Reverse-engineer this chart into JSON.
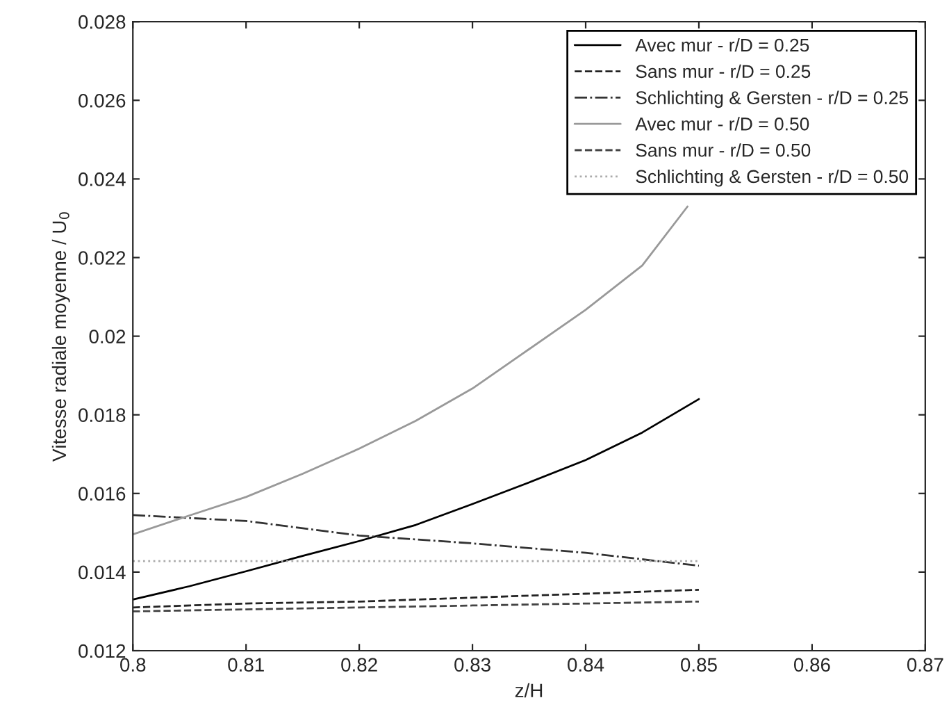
{
  "chart_data": {
    "type": "line",
    "xlabel": "z/H",
    "ylabel": "Vitesse radiale moyenne / U$_{0}$",
    "xlim": [
      0.8,
      0.87
    ],
    "xticks": [
      0.8,
      0.81,
      0.82,
      0.83,
      0.84,
      0.85,
      0.86,
      0.87
    ],
    "ylim": [
      0.012,
      0.028
    ],
    "yticks": [
      0.012,
      0.014,
      0.016,
      0.018,
      0.02,
      0.022,
      0.024,
      0.026,
      0.028
    ],
    "grid": false,
    "legend": "top right",
    "marker": "none",
    "series": [
      {
        "name": "Avec mur - r/D = 0.25",
        "color": "#000000",
        "line_style": "solid",
        "x": [
          0.8,
          0.805,
          0.81,
          0.815,
          0.82,
          0.825,
          0.83,
          0.835,
          0.84,
          0.845,
          0.85
        ],
        "values": [
          0.0133,
          0.01364,
          0.01402,
          0.01441,
          0.01479,
          0.0152,
          0.01573,
          0.01628,
          0.01685,
          0.01755,
          0.0184
        ]
      },
      {
        "name": "Sans mur - r/D = 0.25",
        "color": "#222222",
        "line_style": "dashed",
        "x": [
          0.8,
          0.81,
          0.82,
          0.83,
          0.84,
          0.85
        ],
        "values": [
          0.0131,
          0.0132,
          0.01325,
          0.01335,
          0.01345,
          0.01355
        ]
      },
      {
        "name": "Schlichting & Gersten - r/D = 0.25",
        "color": "#333333",
        "line_style": "dashdot",
        "x": [
          0.8,
          0.81,
          0.82,
          0.83,
          0.84,
          0.85
        ],
        "values": [
          0.01545,
          0.0153,
          0.01493,
          0.01473,
          0.01449,
          0.01416
        ]
      },
      {
        "name": "Avec mur - r/D = 0.50",
        "color": "#999999",
        "line_style": "solid",
        "x": [
          0.8,
          0.805,
          0.81,
          0.815,
          0.82,
          0.825,
          0.83,
          0.835,
          0.84,
          0.845,
          0.849
        ],
        "values": [
          0.01496,
          0.01544,
          0.01591,
          0.0165,
          0.01714,
          0.01785,
          0.01867,
          0.01967,
          0.02067,
          0.0218,
          0.0233
        ]
      },
      {
        "name": "Sans mur - r/D = 0.50",
        "color": "#444444",
        "line_style": "dashed",
        "x": [
          0.8,
          0.81,
          0.82,
          0.83,
          0.84,
          0.85
        ],
        "values": [
          0.013,
          0.01305,
          0.0131,
          0.01315,
          0.0132,
          0.01325
        ]
      },
      {
        "name": "Schlichting & Gersten - r/D = 0.50",
        "color": "#aaaaaa",
        "line_style": "dotted",
        "x": [
          0.8,
          0.85
        ],
        "values": [
          0.01428,
          0.01428
        ]
      }
    ]
  }
}
